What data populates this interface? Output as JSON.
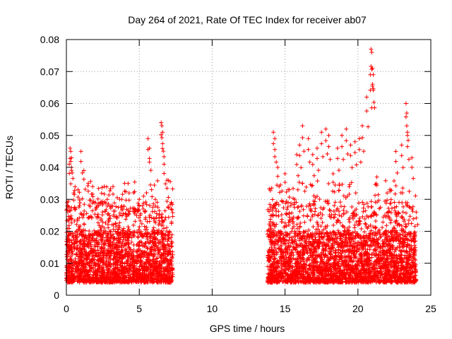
{
  "chart_data": {
    "type": "scatter",
    "title": "Day 264 of 2021, Rate Of TEC Index for receiver ab07",
    "xlabel": "GPS time / hours",
    "ylabel": "ROTI / TECUs",
    "xlim": [
      0,
      25
    ],
    "ylim": [
      0,
      0.08
    ],
    "x_ticks": [
      "0",
      "5",
      "10",
      "15",
      "20",
      "25"
    ],
    "y_ticks": [
      "0",
      "0.01",
      "0.02",
      "0.03",
      "0.04",
      "0.05",
      "0.06",
      "0.07",
      "0.08"
    ],
    "grid": true,
    "marker": "+",
    "colors": {
      "points": "#ff0000",
      "grid": "#a0a0a0",
      "axes": "#000000"
    },
    "observed_intervals_hours": [
      [
        0.0,
        7.3
      ],
      [
        13.8,
        24.0
      ]
    ],
    "series": [
      {
        "points": [
          [
            0.05,
            0.029
          ],
          [
            0.1,
            0.028
          ],
          [
            0.2,
            0.041
          ],
          [
            0.25,
            0.046
          ],
          [
            0.3,
            0.045
          ],
          [
            0.35,
            0.043
          ],
          [
            0.5,
            0.032
          ],
          [
            0.8,
            0.033
          ],
          [
            1.0,
            0.045
          ],
          [
            1.2,
            0.039
          ],
          [
            1.5,
            0.035
          ],
          [
            1.8,
            0.034
          ],
          [
            2.0,
            0.029
          ],
          [
            2.6,
            0.034
          ],
          [
            2.8,
            0.03
          ],
          [
            3.2,
            0.034
          ],
          [
            3.8,
            0.03
          ],
          [
            4.0,
            0.035
          ],
          [
            4.3,
            0.032
          ],
          [
            5.0,
            0.03
          ],
          [
            5.3,
            0.031
          ],
          [
            5.6,
            0.049
          ],
          [
            5.7,
            0.046
          ],
          [
            6.1,
            0.03
          ],
          [
            6.5,
            0.054
          ],
          [
            6.55,
            0.053
          ],
          [
            6.6,
            0.051
          ],
          [
            6.7,
            0.041
          ],
          [
            6.9,
            0.036
          ],
          [
            7.2,
            0.029
          ],
          [
            14.0,
            0.023
          ],
          [
            14.2,
            0.051
          ],
          [
            14.3,
            0.049
          ],
          [
            14.5,
            0.04
          ],
          [
            15.0,
            0.038
          ],
          [
            15.3,
            0.033
          ],
          [
            15.8,
            0.044
          ],
          [
            16.0,
            0.047
          ],
          [
            16.2,
            0.053
          ],
          [
            16.6,
            0.049
          ],
          [
            16.9,
            0.044
          ],
          [
            17.2,
            0.046
          ],
          [
            17.5,
            0.051
          ],
          [
            17.8,
            0.052
          ],
          [
            18.0,
            0.05
          ],
          [
            18.3,
            0.038
          ],
          [
            18.6,
            0.046
          ],
          [
            18.9,
            0.05
          ],
          [
            19.2,
            0.052
          ],
          [
            19.5,
            0.047
          ],
          [
            19.8,
            0.048
          ],
          [
            20.1,
            0.049
          ],
          [
            20.3,
            0.053
          ],
          [
            20.6,
            0.062
          ],
          [
            20.85,
            0.069
          ],
          [
            20.9,
            0.077
          ],
          [
            20.95,
            0.076
          ],
          [
            21.0,
            0.071
          ],
          [
            21.05,
            0.069
          ],
          [
            21.3,
            0.037
          ],
          [
            22.0,
            0.032
          ],
          [
            22.6,
            0.045
          ],
          [
            23.0,
            0.047
          ],
          [
            23.3,
            0.06
          ],
          [
            23.35,
            0.057
          ],
          [
            23.4,
            0.05
          ],
          [
            23.7,
            0.043
          ],
          [
            24.0,
            0.026
          ]
        ],
        "dense_band": {
          "typical_min": 0.004,
          "typical_max": 0.02
        }
      }
    ]
  }
}
